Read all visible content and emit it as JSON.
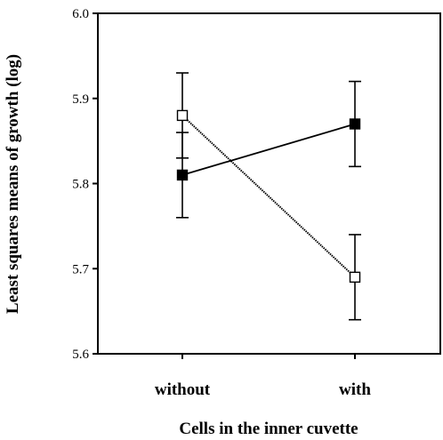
{
  "chart_data": {
    "type": "line",
    "title": "",
    "xlabel": "Cells in the inner cuvette",
    "ylabel": "Least squares means of growth (log)",
    "categories": [
      "without",
      "with"
    ],
    "ylim": [
      5.6,
      6.0
    ],
    "yticks": [
      "5.6",
      "5.7",
      "5.8",
      "5.9",
      "6.0"
    ],
    "grid": false,
    "legend": "none",
    "series": [
      {
        "marker": "filled-square",
        "line_style": "solid",
        "values": [
          5.81,
          5.87
        ],
        "error_low": [
          5.76,
          5.82
        ],
        "error_high": [
          5.86,
          5.92
        ],
        "color": "#000000"
      },
      {
        "marker": "open-square",
        "line_style": "dotted",
        "values": [
          5.88,
          5.69
        ],
        "error_low": [
          5.83,
          5.64
        ],
        "error_high": [
          5.93,
          5.74
        ],
        "color": "#000000"
      }
    ]
  }
}
